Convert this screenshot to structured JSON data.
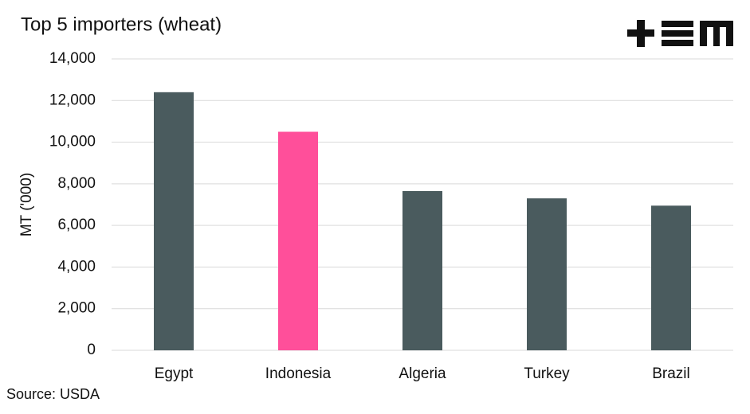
{
  "chart_data": {
    "type": "bar",
    "title": "Top 5 importers (wheat)",
    "ylabel": "MT ('000)",
    "source": "Source: USDA",
    "categories": [
      "Egypt",
      "Indonesia",
      "Algeria",
      "Turkey",
      "Brazil"
    ],
    "values": [
      12400,
      10500,
      7650,
      7300,
      6950
    ],
    "colors": [
      "#4a5b5e",
      "#ff4f9a",
      "#4a5b5e",
      "#4a5b5e",
      "#4a5b5e"
    ],
    "ylim": [
      0,
      14000
    ],
    "yticks": [
      0,
      {
        "value": 2000,
        "label": "2,000"
      },
      {
        "value": 4000,
        "label": "4,000"
      },
      {
        "value": 6000,
        "label": "6,000"
      },
      {
        "value": 8000,
        "label": "8,000"
      },
      {
        "value": 10000,
        "label": "10,000"
      },
      {
        "value": 12000,
        "label": "12,000"
      },
      {
        "value": 14000,
        "label": "14,000"
      }
    ],
    "grid": true
  }
}
